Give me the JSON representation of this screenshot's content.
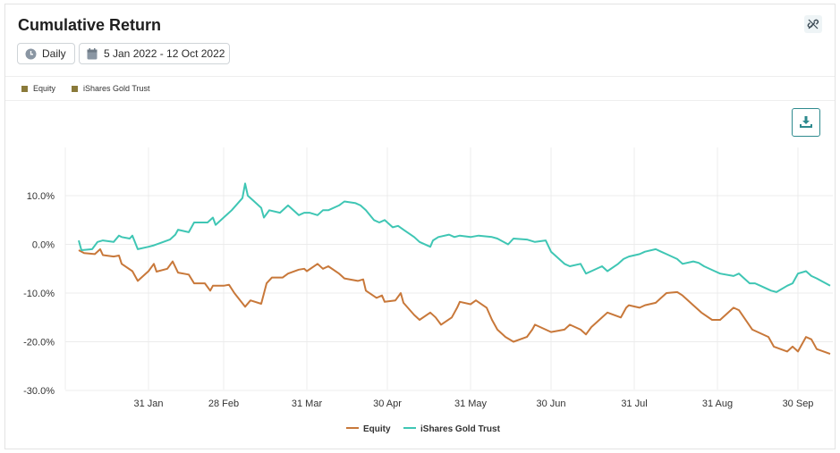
{
  "header": {
    "title": "Cumulative Return"
  },
  "controls": {
    "frequency": "Daily",
    "date_range": "5 Jan 2022 - 12 Oct 2022"
  },
  "colors": {
    "equity": "#c8783a",
    "gold": "#3fc6b4",
    "legend_square": "#8a7a3a",
    "accent": "#2e8a8e"
  },
  "icons": {
    "link": "unlink-icon",
    "frequency": "clock-icon",
    "date": "calendar-icon",
    "download": "download-icon"
  },
  "chart_data": {
    "type": "line",
    "title": "Cumulative Return",
    "ylim": [
      -30,
      10
    ],
    "yticks": [
      "10.0%",
      "0.0%",
      "-10.0%",
      "-20.0%",
      "-30.0%"
    ],
    "yticks_values": [
      10,
      0,
      -10,
      -20,
      -30
    ],
    "xticks": [
      "31 Jan",
      "28 Feb",
      "31 Mar",
      "30 Apr",
      "31 May",
      "30 Jun",
      "31 Jul",
      "31 Aug",
      "30 Sep"
    ],
    "xticks_dates": [
      "2022-01-31",
      "2022-02-28",
      "2022-03-31",
      "2022-04-30",
      "2022-05-31",
      "2022-06-30",
      "2022-07-31",
      "2022-08-31",
      "2022-09-30"
    ],
    "x_range": [
      "2022-01-05",
      "2022-10-12"
    ],
    "grid": true,
    "legend": "top-left and bottom-center",
    "series": [
      {
        "name": "Equity",
        "color": "#c8783a",
        "points": [
          [
            "2022-01-05",
            -1.2
          ],
          [
            "2022-01-07",
            -1.8
          ],
          [
            "2022-01-11",
            -2.0
          ],
          [
            "2022-01-13",
            -1.0
          ],
          [
            "2022-01-14",
            -2.2
          ],
          [
            "2022-01-18",
            -2.5
          ],
          [
            "2022-01-20",
            -2.3
          ],
          [
            "2022-01-21",
            -4.0
          ],
          [
            "2022-01-25",
            -5.5
          ],
          [
            "2022-01-27",
            -7.5
          ],
          [
            "2022-01-28",
            -7.0
          ],
          [
            "2022-01-31",
            -5.5
          ],
          [
            "2022-02-02",
            -4.0
          ],
          [
            "2022-02-03",
            -5.6
          ],
          [
            "2022-02-07",
            -5.0
          ],
          [
            "2022-02-09",
            -3.5
          ],
          [
            "2022-02-11",
            -5.8
          ],
          [
            "2022-02-15",
            -6.2
          ],
          [
            "2022-02-17",
            -8.0
          ],
          [
            "2022-02-21",
            -8.0
          ],
          [
            "2022-02-23",
            -9.5
          ],
          [
            "2022-02-24",
            -8.5
          ],
          [
            "2022-02-28",
            -8.5
          ],
          [
            "2022-03-02",
            -8.3
          ],
          [
            "2022-03-04",
            -10.0
          ],
          [
            "2022-03-08",
            -12.8
          ],
          [
            "2022-03-10",
            -11.5
          ],
          [
            "2022-03-14",
            -12.2
          ],
          [
            "2022-03-16",
            -8.0
          ],
          [
            "2022-03-18",
            -6.8
          ],
          [
            "2022-03-22",
            -6.8
          ],
          [
            "2022-03-24",
            -6.0
          ],
          [
            "2022-03-28",
            -5.2
          ],
          [
            "2022-03-30",
            -5.0
          ],
          [
            "2022-03-31",
            -5.5
          ],
          [
            "2022-04-04",
            -4.0
          ],
          [
            "2022-04-06",
            -5.0
          ],
          [
            "2022-04-08",
            -4.5
          ],
          [
            "2022-04-12",
            -6.0
          ],
          [
            "2022-04-14",
            -7.0
          ],
          [
            "2022-04-19",
            -7.5
          ],
          [
            "2022-04-21",
            -7.2
          ],
          [
            "2022-04-22",
            -9.5
          ],
          [
            "2022-04-26",
            -11.0
          ],
          [
            "2022-04-28",
            -10.5
          ],
          [
            "2022-04-29",
            -11.8
          ],
          [
            "2022-05-03",
            -11.5
          ],
          [
            "2022-05-05",
            -10.0
          ],
          [
            "2022-05-06",
            -12.0
          ],
          [
            "2022-05-10",
            -14.5
          ],
          [
            "2022-05-12",
            -15.5
          ],
          [
            "2022-05-16",
            -14.0
          ],
          [
            "2022-05-18",
            -15.0
          ],
          [
            "2022-05-20",
            -16.5
          ],
          [
            "2022-05-24",
            -15.0
          ],
          [
            "2022-05-26",
            -13.0
          ],
          [
            "2022-05-27",
            -11.8
          ],
          [
            "2022-05-31",
            -12.3
          ],
          [
            "2022-06-02",
            -11.5
          ],
          [
            "2022-06-06",
            -13.0
          ],
          [
            "2022-06-08",
            -15.5
          ],
          [
            "2022-06-10",
            -17.5
          ],
          [
            "2022-06-13",
            -19.0
          ],
          [
            "2022-06-16",
            -20.0
          ],
          [
            "2022-06-21",
            -19.0
          ],
          [
            "2022-06-23",
            -17.5
          ],
          [
            "2022-06-24",
            -16.5
          ],
          [
            "2022-06-28",
            -17.5
          ],
          [
            "2022-06-30",
            -18.0
          ],
          [
            "2022-07-05",
            -17.5
          ],
          [
            "2022-07-07",
            -16.5
          ],
          [
            "2022-07-11",
            -17.5
          ],
          [
            "2022-07-13",
            -18.5
          ],
          [
            "2022-07-15",
            -17.0
          ],
          [
            "2022-07-19",
            -15.0
          ],
          [
            "2022-07-21",
            -14.0
          ],
          [
            "2022-07-26",
            -15.0
          ],
          [
            "2022-07-28",
            -13.0
          ],
          [
            "2022-07-29",
            -12.5
          ],
          [
            "2022-08-02",
            -13.0
          ],
          [
            "2022-08-04",
            -12.5
          ],
          [
            "2022-08-08",
            -12.0
          ],
          [
            "2022-08-10",
            -11.0
          ],
          [
            "2022-08-12",
            -10.0
          ],
          [
            "2022-08-16",
            -9.8
          ],
          [
            "2022-08-18",
            -10.5
          ],
          [
            "2022-08-22",
            -12.5
          ],
          [
            "2022-08-25",
            -14.0
          ],
          [
            "2022-08-29",
            -15.5
          ],
          [
            "2022-09-01",
            -15.5
          ],
          [
            "2022-09-06",
            -13.0
          ],
          [
            "2022-09-08",
            -13.5
          ],
          [
            "2022-09-13",
            -17.5
          ],
          [
            "2022-09-15",
            -18.0
          ],
          [
            "2022-09-19",
            -19.0
          ],
          [
            "2022-09-21",
            -21.0
          ],
          [
            "2022-09-26",
            -22.0
          ],
          [
            "2022-09-28",
            -21.0
          ],
          [
            "2022-09-30",
            -22.0
          ],
          [
            "2022-10-03",
            -19.0
          ],
          [
            "2022-10-05",
            -19.5
          ],
          [
            "2022-10-07",
            -21.5
          ],
          [
            "2022-10-12",
            -22.5
          ]
        ]
      },
      {
        "name": "iShares Gold Trust",
        "color": "#3fc6b4",
        "points": [
          [
            "2022-01-05",
            0.8
          ],
          [
            "2022-01-06",
            -1.2
          ],
          [
            "2022-01-10",
            -1.0
          ],
          [
            "2022-01-12",
            0.5
          ],
          [
            "2022-01-14",
            0.8
          ],
          [
            "2022-01-18",
            0.5
          ],
          [
            "2022-01-20",
            1.8
          ],
          [
            "2022-01-21",
            1.5
          ],
          [
            "2022-01-24",
            1.2
          ],
          [
            "2022-01-25",
            1.8
          ],
          [
            "2022-01-27",
            -1.0
          ],
          [
            "2022-01-31",
            -0.5
          ],
          [
            "2022-02-02",
            -0.2
          ],
          [
            "2022-02-04",
            0.2
          ],
          [
            "2022-02-08",
            1.0
          ],
          [
            "2022-02-10",
            2.0
          ],
          [
            "2022-02-11",
            3.0
          ],
          [
            "2022-02-15",
            2.5
          ],
          [
            "2022-02-17",
            4.5
          ],
          [
            "2022-02-22",
            4.5
          ],
          [
            "2022-02-24",
            5.5
          ],
          [
            "2022-02-25",
            4.0
          ],
          [
            "2022-03-01",
            6.0
          ],
          [
            "2022-03-03",
            7.0
          ],
          [
            "2022-03-07",
            9.5
          ],
          [
            "2022-03-08",
            12.5
          ],
          [
            "2022-03-09",
            10.0
          ],
          [
            "2022-03-11",
            9.0
          ],
          [
            "2022-03-14",
            7.5
          ],
          [
            "2022-03-15",
            5.5
          ],
          [
            "2022-03-17",
            7.0
          ],
          [
            "2022-03-21",
            6.5
          ],
          [
            "2022-03-23",
            7.5
          ],
          [
            "2022-03-24",
            8.0
          ],
          [
            "2022-03-28",
            6.0
          ],
          [
            "2022-03-30",
            6.5
          ],
          [
            "2022-04-01",
            6.5
          ],
          [
            "2022-04-04",
            6.0
          ],
          [
            "2022-04-06",
            7.0
          ],
          [
            "2022-04-08",
            7.0
          ],
          [
            "2022-04-12",
            8.0
          ],
          [
            "2022-04-14",
            8.8
          ],
          [
            "2022-04-18",
            8.5
          ],
          [
            "2022-04-20",
            8.0
          ],
          [
            "2022-04-22",
            7.0
          ],
          [
            "2022-04-25",
            5.0
          ],
          [
            "2022-04-27",
            4.5
          ],
          [
            "2022-04-29",
            5.0
          ],
          [
            "2022-05-02",
            3.5
          ],
          [
            "2022-05-04",
            3.8
          ],
          [
            "2022-05-06",
            3.0
          ],
          [
            "2022-05-10",
            1.5
          ],
          [
            "2022-05-12",
            0.5
          ],
          [
            "2022-05-16",
            -0.5
          ],
          [
            "2022-05-17",
            0.8
          ],
          [
            "2022-05-19",
            1.5
          ],
          [
            "2022-05-23",
            2.0
          ],
          [
            "2022-05-25",
            1.5
          ],
          [
            "2022-05-27",
            1.8
          ],
          [
            "2022-05-31",
            1.5
          ],
          [
            "2022-06-03",
            1.8
          ],
          [
            "2022-06-08",
            1.5
          ],
          [
            "2022-06-10",
            1.2
          ],
          [
            "2022-06-14",
            0.0
          ],
          [
            "2022-06-16",
            1.2
          ],
          [
            "2022-06-21",
            1.0
          ],
          [
            "2022-06-24",
            0.5
          ],
          [
            "2022-06-28",
            0.8
          ],
          [
            "2022-06-30",
            -1.5
          ],
          [
            "2022-07-05",
            -4.0
          ],
          [
            "2022-07-07",
            -4.5
          ],
          [
            "2022-07-11",
            -4.0
          ],
          [
            "2022-07-13",
            -6.0
          ],
          [
            "2022-07-15",
            -5.5
          ],
          [
            "2022-07-19",
            -4.5
          ],
          [
            "2022-07-21",
            -5.5
          ],
          [
            "2022-07-25",
            -4.0
          ],
          [
            "2022-07-27",
            -3.0
          ],
          [
            "2022-07-29",
            -2.5
          ],
          [
            "2022-08-02",
            -2.0
          ],
          [
            "2022-08-04",
            -1.5
          ],
          [
            "2022-08-08",
            -1.0
          ],
          [
            "2022-08-10",
            -1.5
          ],
          [
            "2022-08-12",
            -2.0
          ],
          [
            "2022-08-16",
            -3.0
          ],
          [
            "2022-08-18",
            -4.0
          ],
          [
            "2022-08-22",
            -3.5
          ],
          [
            "2022-08-24",
            -3.8
          ],
          [
            "2022-08-26",
            -4.5
          ],
          [
            "2022-08-30",
            -5.5
          ],
          [
            "2022-09-01",
            -6.0
          ],
          [
            "2022-09-06",
            -6.5
          ],
          [
            "2022-09-08",
            -6.0
          ],
          [
            "2022-09-12",
            -8.0
          ],
          [
            "2022-09-14",
            -8.0
          ],
          [
            "2022-09-16",
            -8.5
          ],
          [
            "2022-09-20",
            -9.5
          ],
          [
            "2022-09-22",
            -9.8
          ],
          [
            "2022-09-26",
            -8.5
          ],
          [
            "2022-09-28",
            -8.0
          ],
          [
            "2022-09-30",
            -6.0
          ],
          [
            "2022-10-03",
            -5.5
          ],
          [
            "2022-10-05",
            -6.5
          ],
          [
            "2022-10-07",
            -7.0
          ],
          [
            "2022-10-12",
            -8.5
          ]
        ]
      }
    ]
  }
}
